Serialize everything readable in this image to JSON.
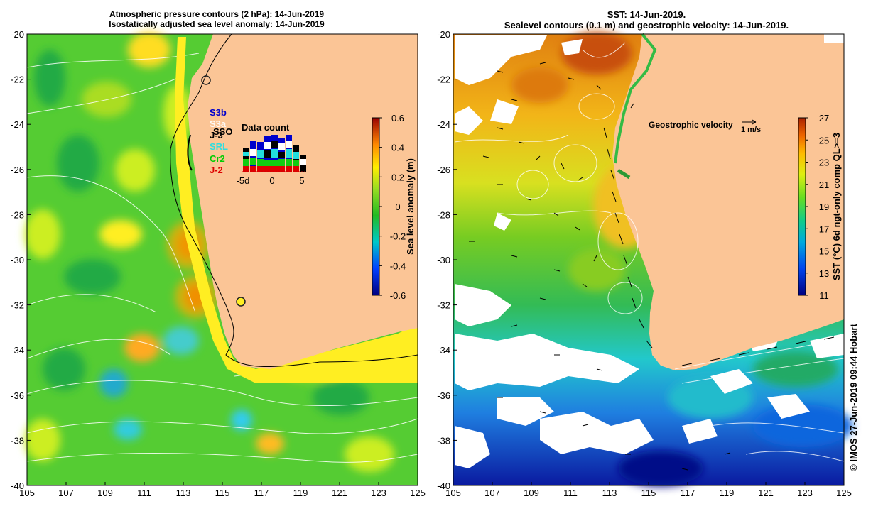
{
  "left_map": {
    "title_line1": "Atmospheric pressure contours (2 hPa): 14-Jun-2019",
    "title_line2": "Isostatically adjusted sea level anomaly: 14-Jun-2019",
    "x_ticks": [
      "105",
      "107",
      "109",
      "111",
      "113",
      "115",
      "117",
      "119",
      "121",
      "123",
      "125"
    ],
    "y_ticks": [
      "-20",
      "-22",
      "-24",
      "-26",
      "-28",
      "-30",
      "-32",
      "-34",
      "-36",
      "-38",
      "-40"
    ],
    "colorbar_label": "Sea level anomaly (m)",
    "colorbar_ticks": [
      "0.6",
      "0.4",
      "0.2",
      "0",
      "-0.2",
      "-0.4",
      "-0.6"
    ],
    "satellites": [
      {
        "name": "S3b",
        "color": "#0000cc"
      },
      {
        "name": "S3a",
        "color": "#ffffff"
      },
      {
        "name": "J-3",
        "color": "#000000"
      },
      {
        "name": "SSO",
        "color": "#000000"
      },
      {
        "name": "SRL",
        "color": "#33dddd"
      },
      {
        "name": "Cr2",
        "color": "#00cc00"
      },
      {
        "name": "J-2",
        "color": "#dd0000"
      }
    ],
    "data_count_title": "Data count",
    "data_count_x_ticks": [
      "-5d",
      "0",
      "5"
    ]
  },
  "right_map": {
    "title_line1": "SST: 14-Jun-2019.",
    "title_line2": "Sealevel contours (0.1 m) and geostrophic velocity: 14-Jun-2019.",
    "x_ticks": [
      "105",
      "107",
      "109",
      "111",
      "113",
      "115",
      "117",
      "119",
      "121",
      "123",
      "125"
    ],
    "y_ticks": [
      "-20",
      "-22",
      "-24",
      "-26",
      "-28",
      "-30",
      "-32",
      "-34",
      "-36",
      "-38",
      "-40"
    ],
    "velocity_legend": "Geostrophic velocity",
    "velocity_scale": "1 m/s",
    "colorbar_label": "SST (°C) 6d ngt-only comp QL>=3",
    "colorbar_ticks": [
      "27",
      "25",
      "23",
      "21",
      "19",
      "17",
      "15",
      "13",
      "11"
    ]
  },
  "credit": "© IMOS 27-Jun-2019 09:44 Hobart",
  "colors": {
    "land": "#fbc596",
    "ocean_green": "#55cc33",
    "white": "#ffffff"
  }
}
